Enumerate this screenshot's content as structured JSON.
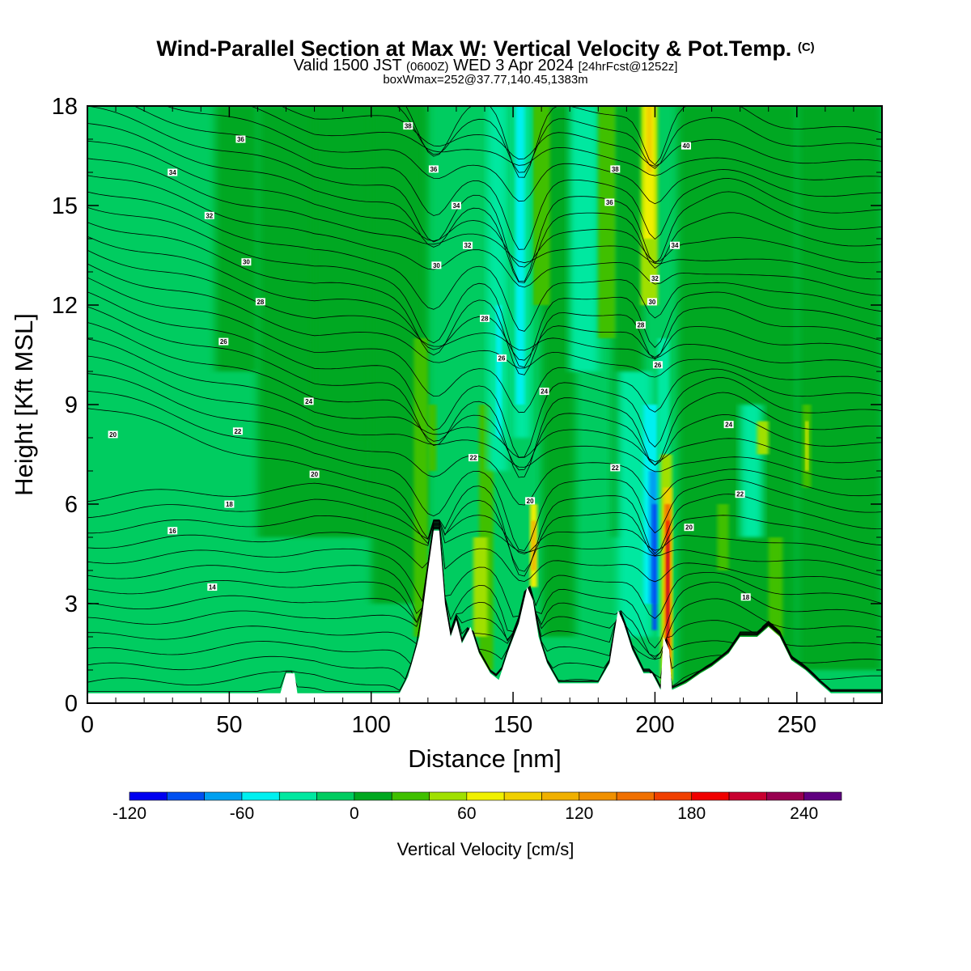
{
  "header": {
    "title": "Wind-Parallel Section at Max W: Vertical Velocity & Pot.Temp.",
    "title_mark": "(C)",
    "valid_main": "Valid 1500 JST",
    "valid_z": "(0600Z)",
    "valid_date": "WED 3 Apr 2024",
    "valid_fcst": "[24hrFcst@1252z]",
    "box_line": "boxWmax=252@37.77,140.45,1383m"
  },
  "chart_data": {
    "type": "heatmap",
    "title": "Wind-Parallel Section at Max W: Vertical Velocity & Pot.Temp.",
    "xlabel": "Distance [nm]",
    "ylabel": "Height [Kft MSL]",
    "xlim": [
      0,
      280
    ],
    "ylim": [
      0,
      18
    ],
    "xticks": [
      "0",
      "50",
      "100",
      "150",
      "200",
      "250"
    ],
    "yticks": [
      "0",
      "3",
      "6",
      "9",
      "12",
      "15",
      "18"
    ],
    "colorbar": {
      "label": "Vertical Velocity [cm/s]",
      "ticks": [
        "-120",
        "-60",
        "0",
        "60",
        "120",
        "180",
        "240"
      ],
      "levels": [
        -120,
        -100,
        -80,
        -60,
        -40,
        -20,
        0,
        20,
        40,
        60,
        80,
        100,
        120,
        140,
        160,
        180,
        200,
        220,
        240,
        260
      ],
      "colors": [
        "#0000f0",
        "#0050f0",
        "#00a0f0",
        "#00f0f0",
        "#00e8a0",
        "#00cc60",
        "#00a820",
        "#40c000",
        "#a0e000",
        "#f0f000",
        "#f0d000",
        "#f0b000",
        "#f09000",
        "#f07000",
        "#f04000",
        "#f00000",
        "#c80030",
        "#980050",
        "#600080"
      ]
    },
    "terrain_kft": [
      [
        0,
        0.3
      ],
      [
        50,
        0.3
      ],
      [
        68,
        0.3
      ],
      [
        70,
        0.9
      ],
      [
        73,
        0.9
      ],
      [
        74,
        0.3
      ],
      [
        110,
        0.3
      ],
      [
        113,
        0.8
      ],
      [
        117,
        2.0
      ],
      [
        120,
        4.0
      ],
      [
        122,
        5.2
      ],
      [
        124,
        5.2
      ],
      [
        126,
        3.0
      ],
      [
        128,
        2.0
      ],
      [
        130,
        2.5
      ],
      [
        132,
        1.8
      ],
      [
        135,
        2.3
      ],
      [
        138,
        1.5
      ],
      [
        142,
        0.9
      ],
      [
        145,
        0.7
      ],
      [
        148,
        1.5
      ],
      [
        152,
        2.4
      ],
      [
        155,
        3.5
      ],
      [
        157,
        3.1
      ],
      [
        159,
        2.0
      ],
      [
        162,
        1.2
      ],
      [
        166,
        0.6
      ],
      [
        180,
        0.6
      ],
      [
        184,
        1.2
      ],
      [
        187,
        2.8
      ],
      [
        189,
        2.4
      ],
      [
        192,
        1.6
      ],
      [
        196,
        0.9
      ],
      [
        199,
        0.9
      ],
      [
        202,
        0.4
      ],
      [
        203,
        2.0
      ],
      [
        205,
        1.6
      ],
      [
        206,
        0.4
      ],
      [
        211,
        0.6
      ],
      [
        216,
        0.9
      ],
      [
        220,
        1.1
      ],
      [
        226,
        1.5
      ],
      [
        230,
        2.0
      ],
      [
        236,
        2.0
      ],
      [
        240,
        2.3
      ],
      [
        244,
        2.0
      ],
      [
        248,
        1.3
      ],
      [
        253,
        1.0
      ],
      [
        258,
        0.6
      ],
      [
        262,
        0.3
      ],
      [
        280,
        0.3
      ]
    ],
    "theta_labels": [
      {
        "x": 9,
        "y": 8.1,
        "v": "20"
      },
      {
        "x": 30,
        "y": 16.0,
        "v": "34"
      },
      {
        "x": 54,
        "y": 17.0,
        "v": "36"
      },
      {
        "x": 43,
        "y": 14.7,
        "v": "32"
      },
      {
        "x": 56,
        "y": 13.3,
        "v": "30"
      },
      {
        "x": 61,
        "y": 12.1,
        "v": "28"
      },
      {
        "x": 48,
        "y": 10.9,
        "v": "26"
      },
      {
        "x": 78,
        "y": 9.1,
        "v": "24"
      },
      {
        "x": 53,
        "y": 8.2,
        "v": "22"
      },
      {
        "x": 80,
        "y": 6.9,
        "v": "20"
      },
      {
        "x": 50,
        "y": 6.0,
        "v": "18"
      },
      {
        "x": 30,
        "y": 5.2,
        "v": "16"
      },
      {
        "x": 44,
        "y": 3.5,
        "v": "14"
      },
      {
        "x": 113,
        "y": 17.4,
        "v": "38"
      },
      {
        "x": 122,
        "y": 16.1,
        "v": "36"
      },
      {
        "x": 130,
        "y": 15.0,
        "v": "34"
      },
      {
        "x": 134,
        "y": 13.8,
        "v": "32"
      },
      {
        "x": 123,
        "y": 13.2,
        "v": "30"
      },
      {
        "x": 140,
        "y": 11.6,
        "v": "28"
      },
      {
        "x": 146,
        "y": 10.4,
        "v": "26"
      },
      {
        "x": 161,
        "y": 9.4,
        "v": "24"
      },
      {
        "x": 136,
        "y": 7.4,
        "v": "22"
      },
      {
        "x": 156,
        "y": 6.1,
        "v": "20"
      },
      {
        "x": 186,
        "y": 16.1,
        "v": "38"
      },
      {
        "x": 184,
        "y": 15.1,
        "v": "36"
      },
      {
        "x": 211,
        "y": 16.8,
        "v": "40"
      },
      {
        "x": 207,
        "y": 13.8,
        "v": "34"
      },
      {
        "x": 200,
        "y": 12.8,
        "v": "32"
      },
      {
        "x": 199,
        "y": 12.1,
        "v": "30"
      },
      {
        "x": 195,
        "y": 11.4,
        "v": "28"
      },
      {
        "x": 201,
        "y": 10.2,
        "v": "26"
      },
      {
        "x": 186,
        "y": 7.1,
        "v": "22"
      },
      {
        "x": 226,
        "y": 8.4,
        "v": "24"
      },
      {
        "x": 230,
        "y": 6.3,
        "v": "22"
      },
      {
        "x": 212,
        "y": 5.3,
        "v": "20"
      },
      {
        "x": 232,
        "y": 3.2,
        "v": "18"
      }
    ]
  }
}
